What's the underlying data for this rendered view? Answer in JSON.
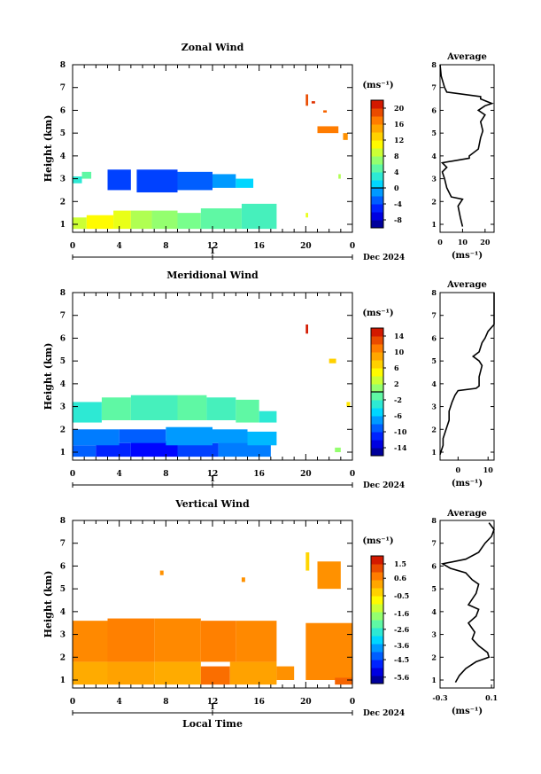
{
  "chart_data": [
    {
      "type": "heatmap",
      "title": "Zonal Wind",
      "ylabel": "Height (km)",
      "xlabel": "",
      "x_ticks": [
        "0",
        "4",
        "8",
        "12",
        "16",
        "20",
        "0"
      ],
      "y_ticks": [
        "1",
        "2",
        "3",
        "4",
        "5",
        "6",
        "7",
        "8"
      ],
      "xlim": [
        0,
        24
      ],
      "ylim": [
        0.65,
        8
      ],
      "date_label": "Dec 2024",
      "day_marker": "1",
      "colorbar": {
        "unit_label": "(ms⁻¹)",
        "ticks": [
          "20",
          "16",
          "12",
          "8",
          "4",
          "0",
          "-4",
          "-8"
        ],
        "tick_values": [
          20,
          16,
          12,
          8,
          4,
          0,
          -4,
          -8
        ],
        "vmin": -10,
        "vmax": 22,
        "zero_line": 0
      },
      "cells_note": "value blocks: [t0, t1, h0, h1, value]",
      "blocks": [
        [
          0.0,
          0.8,
          2.8,
          3.1,
          3
        ],
        [
          0.8,
          1.6,
          3.0,
          3.3,
          5
        ],
        [
          0.0,
          1.2,
          0.8,
          1.3,
          9
        ],
        [
          1.2,
          3.5,
          0.8,
          1.4,
          11
        ],
        [
          3.5,
          5.0,
          0.8,
          1.6,
          10
        ],
        [
          5.0,
          6.8,
          0.8,
          1.6,
          8
        ],
        [
          6.8,
          9.0,
          0.8,
          1.6,
          7
        ],
        [
          9.0,
          11.0,
          0.8,
          1.5,
          6
        ],
        [
          11.0,
          14.5,
          0.8,
          1.7,
          5
        ],
        [
          14.5,
          17.5,
          0.8,
          1.9,
          4
        ],
        [
          3.0,
          5.0,
          2.5,
          3.4,
          -4
        ],
        [
          5.5,
          9.0,
          2.4,
          3.4,
          -4
        ],
        [
          9.0,
          12.0,
          2.5,
          3.3,
          -3
        ],
        [
          12.0,
          14.0,
          2.6,
          3.2,
          -1
        ],
        [
          14.0,
          15.5,
          2.6,
          3.0,
          1
        ],
        [
          20.0,
          20.2,
          6.2,
          6.7,
          19
        ],
        [
          20.5,
          20.8,
          6.3,
          6.4,
          20
        ],
        [
          21.5,
          21.8,
          5.9,
          6.0,
          18
        ],
        [
          21.0,
          22.8,
          5.0,
          5.3,
          17
        ],
        [
          23.2,
          23.6,
          4.7,
          5.0,
          16
        ],
        [
          22.8,
          23.0,
          3.0,
          3.2,
          8
        ],
        [
          20.0,
          20.2,
          1.3,
          1.5,
          10
        ]
      ],
      "profile": {
        "title": "Average",
        "xlabel": "(ms⁻¹)",
        "x_ticks": [
          "0",
          "10",
          "20"
        ],
        "xlim": [
          0,
          24
        ],
        "y_ticks": [
          "1",
          "2",
          "3",
          "4",
          "5",
          "6",
          "7",
          "8"
        ],
        "ylim": [
          0.65,
          8
        ],
        "points": [
          [
            10,
            0.9
          ],
          [
            9,
            1.3
          ],
          [
            8,
            1.8
          ],
          [
            10,
            2.1
          ],
          [
            5,
            2.2
          ],
          [
            3,
            2.6
          ],
          [
            2,
            3.0
          ],
          [
            1,
            3.3
          ],
          [
            3,
            3.5
          ],
          [
            1,
            3.7
          ],
          [
            13,
            3.9
          ],
          [
            13,
            4.0
          ],
          [
            17,
            4.3
          ],
          [
            18,
            4.8
          ],
          [
            19,
            5.1
          ],
          [
            18,
            5.5
          ],
          [
            20,
            5.8
          ],
          [
            17,
            6.0
          ],
          [
            20,
            6.2
          ],
          [
            23,
            6.3
          ],
          [
            18,
            6.5
          ],
          [
            18,
            6.6
          ],
          [
            3,
            6.8
          ],
          [
            2,
            7.0
          ],
          [
            0.5,
            7.5
          ],
          [
            0,
            8.0
          ]
        ]
      }
    },
    {
      "type": "heatmap",
      "title": "Meridional Wind",
      "ylabel": "Height (km)",
      "xlabel": "",
      "x_ticks": [
        "0",
        "4",
        "8",
        "12",
        "16",
        "20",
        "0"
      ],
      "y_ticks": [
        "1",
        "2",
        "3",
        "4",
        "5",
        "6",
        "7",
        "8"
      ],
      "xlim": [
        0,
        24
      ],
      "ylim": [
        0.65,
        8
      ],
      "date_label": "Dec 2024",
      "day_marker": "1",
      "colorbar": {
        "unit_label": "(ms⁻¹)",
        "ticks": [
          "14",
          "10",
          "6",
          "2",
          "-2",
          "-6",
          "-10",
          "-14"
        ],
        "tick_values": [
          14,
          10,
          6,
          2,
          -2,
          -6,
          -10,
          -14
        ],
        "vmin": -16,
        "vmax": 16,
        "zero_line": 0
      },
      "blocks": [
        [
          0.0,
          2.0,
          0.8,
          1.3,
          -9
        ],
        [
          2.0,
          5.0,
          0.8,
          1.4,
          -11
        ],
        [
          5.0,
          9.0,
          0.8,
          1.5,
          -12
        ],
        [
          9.0,
          12.5,
          0.8,
          1.4,
          -10
        ],
        [
          12.5,
          17.0,
          0.8,
          1.6,
          -8
        ],
        [
          0.0,
          4.0,
          1.3,
          2.0,
          -8
        ],
        [
          4.0,
          8.0,
          1.4,
          2.0,
          -9
        ],
        [
          8.0,
          12.0,
          1.3,
          2.1,
          -7
        ],
        [
          12.0,
          15.0,
          1.4,
          2.0,
          -7
        ],
        [
          15.0,
          17.5,
          1.3,
          1.9,
          -6
        ],
        [
          0.0,
          2.5,
          2.3,
          3.2,
          -3
        ],
        [
          2.5,
          5.0,
          2.4,
          3.4,
          -1
        ],
        [
          5.0,
          9.0,
          2.4,
          3.5,
          -2
        ],
        [
          9.0,
          11.5,
          2.4,
          3.5,
          -1
        ],
        [
          11.5,
          14.0,
          2.4,
          3.4,
          -2
        ],
        [
          14.0,
          16.0,
          2.3,
          3.3,
          -1
        ],
        [
          16.0,
          17.5,
          2.3,
          2.8,
          -3
        ],
        [
          20.0,
          20.2,
          6.2,
          6.6,
          15
        ],
        [
          22.0,
          22.6,
          4.9,
          5.1,
          7
        ],
        [
          23.5,
          23.8,
          3.0,
          3.2,
          6
        ],
        [
          22.5,
          23.0,
          1.0,
          1.2,
          1
        ]
      ],
      "profile": {
        "title": "Average",
        "xlabel": "(ms⁻¹)",
        "x_ticks": [
          "0",
          "10"
        ],
        "xlim": [
          -6,
          12
        ],
        "y_ticks": [
          "1",
          "2",
          "3",
          "4",
          "5",
          "6",
          "7",
          "8"
        ],
        "ylim": [
          0.65,
          8
        ],
        "points": [
          [
            -6,
            0.9
          ],
          [
            -5,
            1.3
          ],
          [
            -5,
            1.6
          ],
          [
            -4,
            2.0
          ],
          [
            -3,
            2.4
          ],
          [
            -3,
            2.8
          ],
          [
            -2,
            3.2
          ],
          [
            -1,
            3.5
          ],
          [
            0,
            3.7
          ],
          [
            6,
            3.8
          ],
          [
            7,
            3.9
          ],
          [
            7,
            4.3
          ],
          [
            8,
            4.8
          ],
          [
            7,
            5.0
          ],
          [
            5,
            5.2
          ],
          [
            7,
            5.4
          ],
          [
            8,
            5.8
          ],
          [
            9,
            6.0
          ],
          [
            10,
            6.3
          ],
          [
            12,
            6.6
          ],
          [
            12,
            8.0
          ]
        ]
      }
    },
    {
      "type": "heatmap",
      "title": "Vertical Wind",
      "ylabel": "Height (km)",
      "xlabel": "Local Time",
      "x_ticks": [
        "0",
        "4",
        "8",
        "12",
        "16",
        "20",
        "0"
      ],
      "y_ticks": [
        "1",
        "2",
        "3",
        "4",
        "5",
        "6",
        "7",
        "8"
      ],
      "xlim": [
        0,
        24
      ],
      "ylim": [
        0.65,
        8
      ],
      "date_label": "Dec 2024",
      "day_marker": "1",
      "colorbar": {
        "unit_label": "(ms⁻¹)",
        "ticks": [
          "1.5",
          "0.6",
          "-0.5",
          "-1.6",
          "-2.6",
          "-3.6",
          "-4.5",
          "-5.6"
        ],
        "tick_values": [
          1.5,
          0.6,
          -0.5,
          -1.6,
          -2.6,
          -3.6,
          -4.5,
          -5.6
        ],
        "vmin": -6,
        "vmax": 2,
        "zero_line": null
      },
      "blocks": [
        [
          0.0,
          3.0,
          0.8,
          1.8,
          0.2
        ],
        [
          3.0,
          7.0,
          0.8,
          1.8,
          0.3
        ],
        [
          7.0,
          11.0,
          0.8,
          1.8,
          0.2
        ],
        [
          11.0,
          13.5,
          0.8,
          1.6,
          0.9
        ],
        [
          13.5,
          17.5,
          0.8,
          1.8,
          0.3
        ],
        [
          0.0,
          3.0,
          1.8,
          3.6,
          0.6
        ],
        [
          3.0,
          7.0,
          1.8,
          3.7,
          0.7
        ],
        [
          7.0,
          11.0,
          1.8,
          3.7,
          0.6
        ],
        [
          11.0,
          14.0,
          1.8,
          3.6,
          0.7
        ],
        [
          14.0,
          17.5,
          1.8,
          3.6,
          0.6
        ],
        [
          17.5,
          19.0,
          1.0,
          1.6,
          0.5
        ],
        [
          20.0,
          24.0,
          1.0,
          3.5,
          0.6
        ],
        [
          20.0,
          20.3,
          5.8,
          6.6,
          -0.3
        ],
        [
          7.5,
          7.8,
          5.6,
          5.8,
          0.5
        ],
        [
          14.5,
          14.8,
          5.3,
          5.5,
          0.5
        ],
        [
          21.0,
          23.0,
          5.0,
          6.2,
          0.5
        ],
        [
          22.5,
          24.0,
          0.8,
          1.1,
          1.0
        ]
      ],
      "profile": {
        "title": "Average",
        "xlabel": "(ms⁻¹)",
        "x_ticks": [
          "-0.3",
          "0.1"
        ],
        "xlim": [
          -0.3,
          0.12
        ],
        "y_ticks": [
          "1",
          "2",
          "3",
          "4",
          "5",
          "6",
          "7",
          "8"
        ],
        "ylim": [
          0.65,
          8
        ],
        "points": [
          [
            -0.18,
            0.9
          ],
          [
            -0.15,
            1.2
          ],
          [
            -0.1,
            1.5
          ],
          [
            -0.02,
            1.8
          ],
          [
            0.08,
            2.0
          ],
          [
            0.07,
            2.2
          ],
          [
            0.0,
            2.5
          ],
          [
            -0.05,
            2.8
          ],
          [
            -0.03,
            3.1
          ],
          [
            -0.08,
            3.5
          ],
          [
            -0.02,
            3.8
          ],
          [
            0.0,
            4.1
          ],
          [
            -0.08,
            4.3
          ],
          [
            -0.02,
            4.8
          ],
          [
            0.0,
            5.2
          ],
          [
            -0.05,
            5.4
          ],
          [
            -0.1,
            5.7
          ],
          [
            -0.22,
            5.9
          ],
          [
            -0.28,
            6.1
          ],
          [
            -0.1,
            6.3
          ],
          [
            0.0,
            6.6
          ],
          [
            0.05,
            7.0
          ],
          [
            0.1,
            7.3
          ],
          [
            0.12,
            7.6
          ],
          [
            0.08,
            7.9
          ]
        ]
      }
    }
  ]
}
